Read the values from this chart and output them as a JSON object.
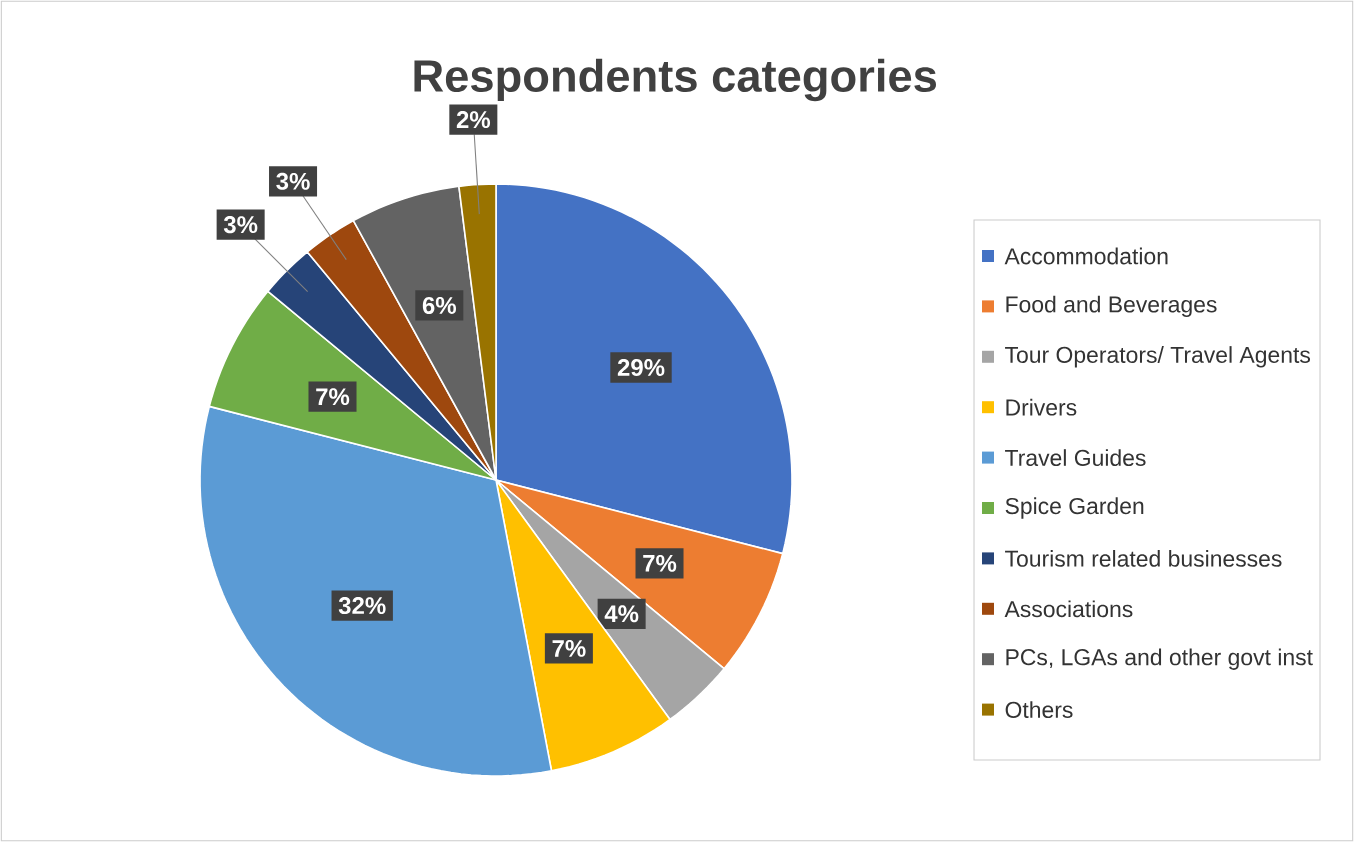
{
  "chart_data": {
    "type": "pie",
    "title": "Respondents categories",
    "categories": [
      "Accommodation",
      "Food and Beverages",
      "Tour Operators/ Travel Agents",
      "Drivers",
      "Travel Guides",
      "Spice Garden",
      "Tourism related businesses",
      "Associations",
      "PCs, LGAs and other govt inst",
      "Others"
    ],
    "values": [
      29,
      7,
      4,
      7,
      32,
      7,
      3,
      3,
      6,
      2
    ],
    "value_labels": [
      "29%",
      "7%",
      "4%",
      "7%",
      "32%",
      "7%",
      "3%",
      "3%",
      "6%",
      "2%"
    ],
    "colors": [
      "#4472c4",
      "#ed7d31",
      "#a5a5a5",
      "#ffc000",
      "#5b9bd5",
      "#70ad47",
      "#264478",
      "#9e480e",
      "#636363",
      "#997300"
    ],
    "legend": "right"
  }
}
